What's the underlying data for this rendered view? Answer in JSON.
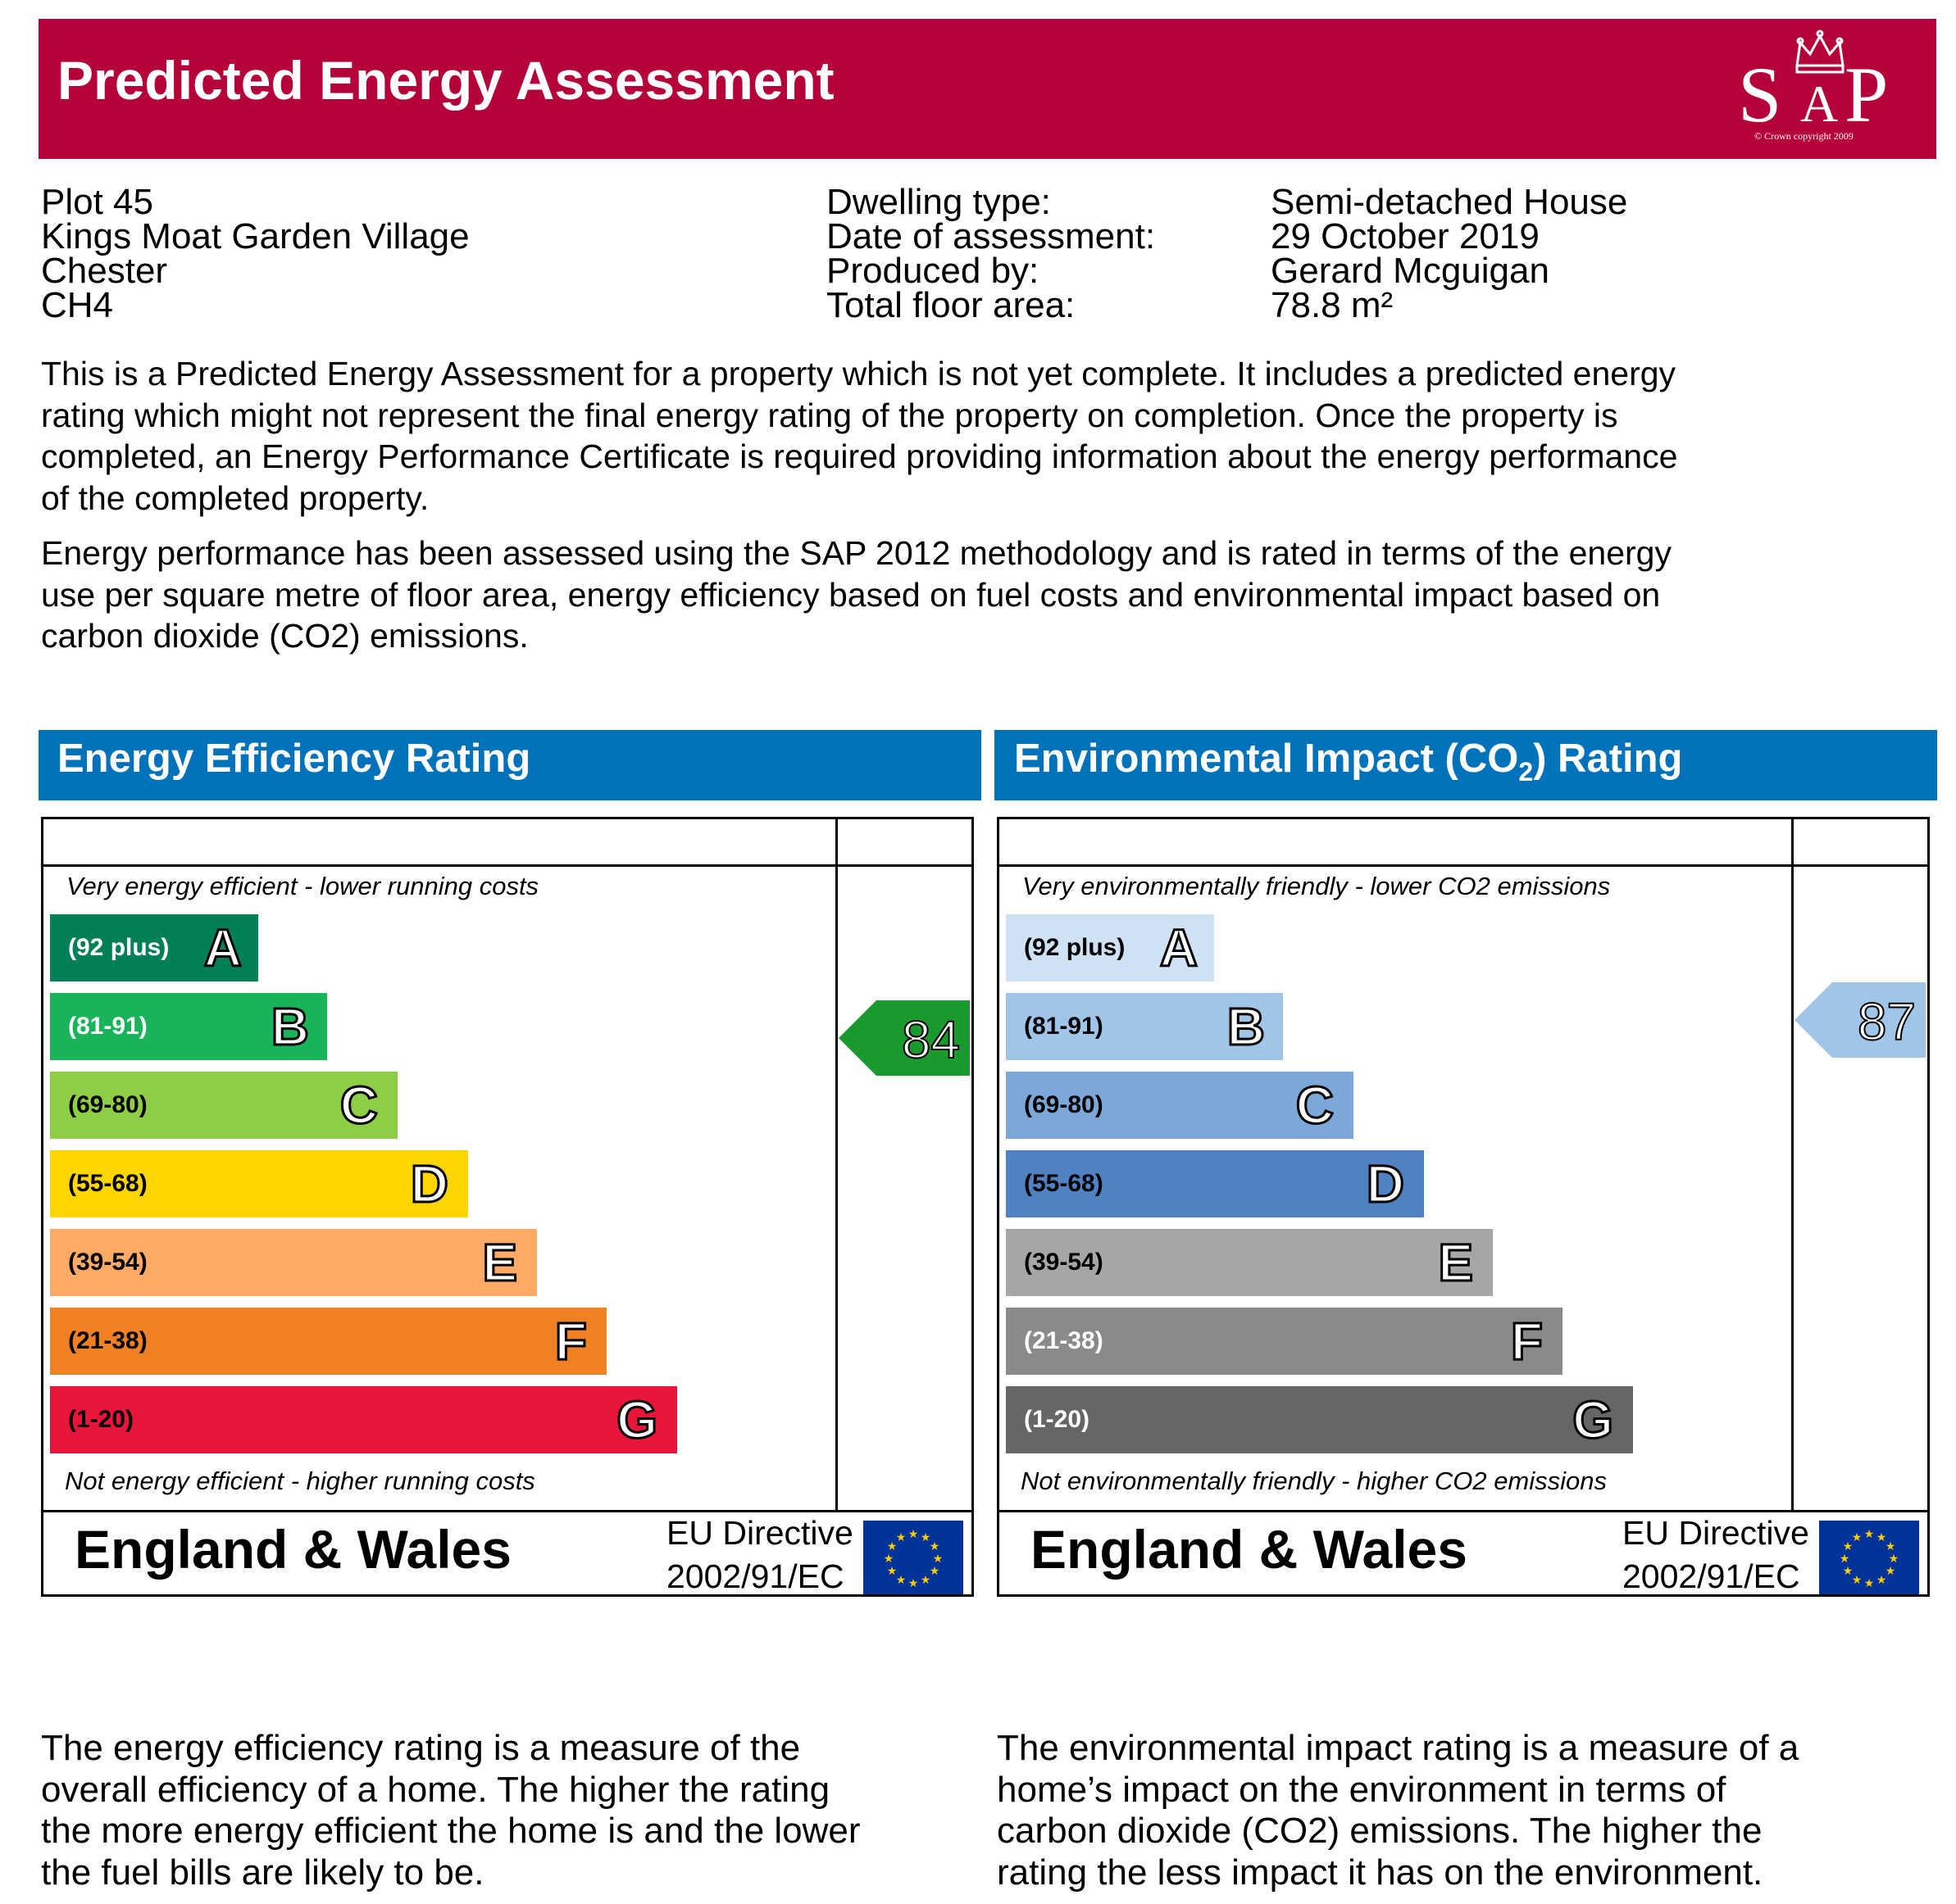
{
  "header": {
    "title": "Predicted Energy Assessment",
    "background": "#b5033a",
    "logo": {
      "text": "SAP",
      "copyright": "© Crown copyright 2009",
      "icon": "crown-icon"
    }
  },
  "address": [
    "Plot 45",
    "Kings Moat Garden Village",
    "Chester",
    "CH4"
  ],
  "details": [
    {
      "label": "Dwelling type:",
      "value": "Semi-detached House"
    },
    {
      "label": "Date of assessment:",
      "value": "29 October 2019"
    },
    {
      "label": "Produced by:",
      "value": "Gerard Mcguigan"
    },
    {
      "label": "Total floor area:",
      "value": "78.8 m²"
    }
  ],
  "intro": [
    [
      "This is a Predicted Energy Assessment for a property which is not yet complete. It includes a predicted energy",
      "rating which might not represent the final energy rating of the property on completion. Once the property is",
      "completed, an Energy Performance Certificate is required providing information about the energy performance",
      "of the completed property."
    ],
    [
      "Energy performance has been assessed using the SAP 2012 methodology and is rated in terms of the energy",
      "use per square metre of floor area, energy efficiency based on fuel costs and environmental impact based on",
      "carbon dioxide (CO2) emissions."
    ]
  ],
  "section_color": "#0072bc",
  "charts": [
    {
      "title": "Energy Efficiency Rating",
      "top_note": "Very energy efficient - lower running costs",
      "bottom_note": "Not energy efficient - higher running costs",
      "bands": [
        {
          "range": "(92 plus)",
          "letter": "A",
          "color": "#008054",
          "range_color": "#ffffff"
        },
        {
          "range": "(81-91)",
          "letter": "B",
          "color": "#19b459",
          "range_color": "#ffffff"
        },
        {
          "range": "(69-80)",
          "letter": "C",
          "color": "#8dce46",
          "range_color": "#000000"
        },
        {
          "range": "(55-68)",
          "letter": "D",
          "color": "#ffd500",
          "range_color": "#000000"
        },
        {
          "range": "(39-54)",
          "letter": "E",
          "color": "#fcaa65",
          "range_color": "#000000"
        },
        {
          "range": "(21-38)",
          "letter": "F",
          "color": "#ef8023",
          "range_color": "#000000"
        },
        {
          "range": "(1-20)",
          "letter": "G",
          "color": "#e9153b",
          "range_color": "#000000"
        }
      ],
      "rating": {
        "value": "84",
        "band": "B",
        "color": "#1a9a2e"
      },
      "footer": {
        "country": "England & Wales",
        "directive_line1": "EU Directive",
        "directive_line2": "2002/91/EC"
      }
    },
    {
      "title": "Environmental Impact (CO",
      "title_sub": "2",
      "title_tail": ") Rating",
      "top_note": "Very environmentally friendly - lower CO2 emissions",
      "bottom_note": "Not environmentally friendly - higher CO2 emissions",
      "bands": [
        {
          "range": "(92 plus)",
          "letter": "A",
          "color": "#cfe2f3",
          "range_color": "#000000"
        },
        {
          "range": "(81-91)",
          "letter": "B",
          "color": "#9fc5e8",
          "range_color": "#000000"
        },
        {
          "range": "(69-80)",
          "letter": "C",
          "color": "#7ba7d9",
          "range_color": "#000000"
        },
        {
          "range": "(55-68)",
          "letter": "D",
          "color": "#4f81c3",
          "range_color": "#000000"
        },
        {
          "range": "(39-54)",
          "letter": "E",
          "color": "#a6a6a6",
          "range_color": "#000000"
        },
        {
          "range": "(21-38)",
          "letter": "F",
          "color": "#8a8a8a",
          "range_color": "#ffffff"
        },
        {
          "range": "(1-20)",
          "letter": "G",
          "color": "#666666",
          "range_color": "#ffffff"
        }
      ],
      "rating": {
        "value": "87",
        "band": "B",
        "color": "#9fc5e8"
      },
      "footer": {
        "country": "England & Wales",
        "directive_line1": "EU Directive",
        "directive_line2": "2002/91/EC"
      }
    }
  ],
  "explanations": [
    [
      "The energy efficiency rating is a measure of the",
      "overall efficiency of a home. The higher the rating",
      "the more energy efficient the home is and the lower",
      "the fuel bills are likely to be."
    ],
    [
      "The environmental impact rating is a measure of a",
      "home’s impact on the environment in terms of",
      "carbon dioxide (CO2) emissions. The higher the",
      "rating the less impact it has on the environment."
    ]
  ]
}
